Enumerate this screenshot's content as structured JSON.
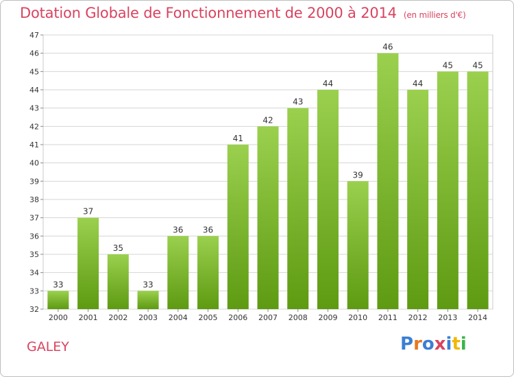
{
  "header": {
    "title": "Dotation Globale de Fonctionnement de 2000 à 2014",
    "unit": "(en milliers d'€)"
  },
  "footer": {
    "commune": "GALEY",
    "logo_text": "Proxiti",
    "logo_colors": [
      "#3b7fd4",
      "#e8781e",
      "#3b7fd4",
      "#d9435f",
      "#3b7fd4",
      "#f2b705",
      "#3bb54a"
    ]
  },
  "colors": {
    "bar_top": "#9ad04e",
    "bar_bottom": "#5e9a12",
    "grid": "#d5d5d5",
    "axis_text": "#333333",
    "title": "#d9435f"
  },
  "chart_data": {
    "type": "bar",
    "categories": [
      "2000",
      "2001",
      "2002",
      "2003",
      "2004",
      "2005",
      "2006",
      "2007",
      "2008",
      "2009",
      "2010",
      "2011",
      "2012",
      "2013",
      "2014"
    ],
    "values": [
      33,
      37,
      35,
      33,
      36,
      36,
      41,
      42,
      43,
      44,
      39,
      46,
      44,
      45,
      45
    ],
    "ylim": [
      32,
      47
    ],
    "yticks": [
      32,
      33,
      34,
      35,
      36,
      37,
      38,
      39,
      40,
      41,
      42,
      43,
      44,
      45,
      46,
      47
    ],
    "grid": true,
    "data_labels": true
  }
}
